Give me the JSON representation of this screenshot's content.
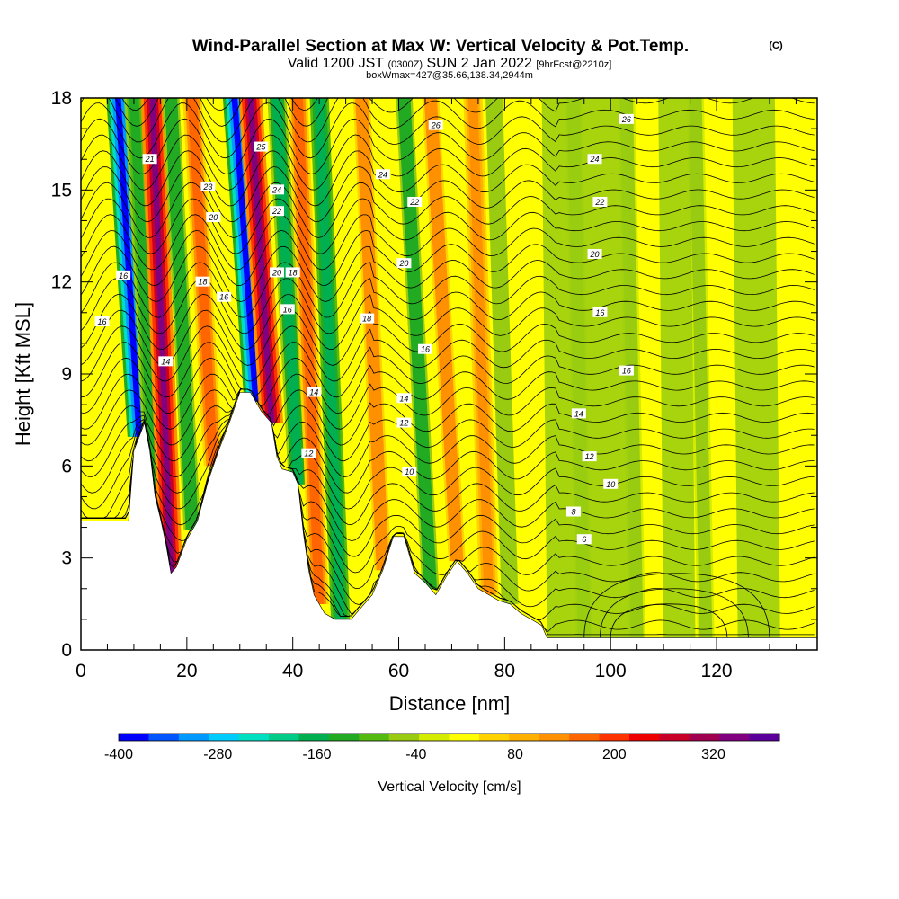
{
  "title": {
    "main": "Wind-Parallel Section at Max W: Vertical Velocity & Pot.Temp.",
    "copyright": "(C)",
    "line2_a": "Valid 1200 JST",
    "line2_b": "(0300Z)",
    "line2_c": "SUN 2 Jan 2022",
    "line2_d": "[9hrFcst@2210z]",
    "line3": "boxWmax=427@35.66,138.34,2944m"
  },
  "chart_data": {
    "type": "heatmap",
    "xlabel": "Distance [nm]",
    "ylabel": "Height [Kft MSL]",
    "xlim": [
      0,
      139
    ],
    "ylim": [
      0,
      18
    ],
    "x_ticks": [
      "0",
      "20",
      "40",
      "60",
      "80",
      "100",
      "120"
    ],
    "y_ticks": [
      "0",
      "3",
      "6",
      "9",
      "12",
      "15",
      "18"
    ],
    "colorbar": {
      "label": "Vertical Velocity [cm/s]",
      "ticks": [
        "-400",
        "-280",
        "-160",
        "-40",
        "80",
        "200",
        "320"
      ],
      "range": [
        -400,
        400
      ],
      "colors": [
        "#0000ff",
        "#0055ff",
        "#0099ff",
        "#00ccff",
        "#00e0c0",
        "#00cc88",
        "#00b050",
        "#22aa22",
        "#55bb11",
        "#99cc11",
        "#d4ec00",
        "#ffff00",
        "#ffd200",
        "#ffb000",
        "#ff9000",
        "#ff6600",
        "#ff3300",
        "#ee0000",
        "#c80028",
        "#a00050",
        "#800080",
        "#5c009c"
      ]
    },
    "terrain_kft": [
      [
        0,
        4.2
      ],
      [
        5,
        4.2
      ],
      [
        9,
        4.2
      ],
      [
        10,
        6.5
      ],
      [
        12,
        7.4
      ],
      [
        13,
        6.5
      ],
      [
        14,
        5.0
      ],
      [
        15,
        4.3
      ],
      [
        16,
        3.5
      ],
      [
        17,
        2.5
      ],
      [
        18,
        2.7
      ],
      [
        20,
        3.6
      ],
      [
        22,
        4.2
      ],
      [
        24,
        5.5
      ],
      [
        26,
        6.5
      ],
      [
        28,
        7.4
      ],
      [
        30,
        8.4
      ],
      [
        32,
        8.4
      ],
      [
        34,
        7.8
      ],
      [
        36,
        7.4
      ],
      [
        37,
        6.3
      ],
      [
        38,
        5.9
      ],
      [
        40,
        5.8
      ],
      [
        41,
        5.4
      ],
      [
        42,
        3.8
      ],
      [
        43,
        2.6
      ],
      [
        44,
        1.8
      ],
      [
        45,
        1.5
      ],
      [
        46,
        1.2
      ],
      [
        48,
        1.0
      ],
      [
        51,
        1.0
      ],
      [
        53,
        1.4
      ],
      [
        55,
        1.8
      ],
      [
        57,
        2.6
      ],
      [
        59,
        3.7
      ],
      [
        61,
        3.7
      ],
      [
        63,
        2.5
      ],
      [
        65,
        2.2
      ],
      [
        67,
        1.8
      ],
      [
        69,
        2.4
      ],
      [
        71,
        2.9
      ],
      [
        73,
        2.5
      ],
      [
        75,
        2.0
      ],
      [
        77,
        1.8
      ],
      [
        79,
        1.6
      ],
      [
        81,
        1.5
      ],
      [
        83,
        1.2
      ],
      [
        85,
        1.0
      ],
      [
        87,
        0.8
      ],
      [
        88,
        0.4
      ],
      [
        139,
        0.4
      ]
    ],
    "wave_columns": [
      {
        "x": 11,
        "w": -380,
        "x_top": 7
      },
      {
        "x": 14,
        "w": -130,
        "x_top": 10
      },
      {
        "x": 17,
        "w": 330,
        "x_top": 13.5
      },
      {
        "x": 21,
        "w": -120,
        "x_top": 17
      },
      {
        "x": 25,
        "w": 150,
        "x_top": 21
      },
      {
        "x": 33,
        "w": -400,
        "x_top": 29
      },
      {
        "x": 36,
        "w": 360,
        "x_top": 32
      },
      {
        "x": 41,
        "w": -160,
        "x_top": 37
      },
      {
        "x": 45,
        "w": 150,
        "x_top": 41
      },
      {
        "x": 49,
        "w": -180,
        "x_top": 45
      },
      {
        "x": 57,
        "w": 120,
        "x_top": 53
      },
      {
        "x": 66,
        "w": -120,
        "x_top": 61
      },
      {
        "x": 71,
        "w": 110,
        "x_top": 66
      },
      {
        "x": 77,
        "w": 140,
        "x_top": 74
      },
      {
        "x": 81,
        "w": -70,
        "x_top": 78
      },
      {
        "x": 95,
        "w": -60,
        "x_top": 93
      },
      {
        "x": 105,
        "w": -50,
        "x_top": 103
      },
      {
        "x": 118,
        "w": -60,
        "x_top": 116
      }
    ],
    "contour_labels": [
      {
        "text": "14",
        "x": 16,
        "y": 9.4
      },
      {
        "text": "14",
        "x": 44,
        "y": 8.4
      },
      {
        "text": "14",
        "x": 61,
        "y": 8.2
      },
      {
        "text": "14",
        "x": 94,
        "y": 7.7
      },
      {
        "text": "16",
        "x": 4,
        "y": 10.7
      },
      {
        "text": "16",
        "x": 8,
        "y": 12.2
      },
      {
        "text": "16",
        "x": 27,
        "y": 11.5
      },
      {
        "text": "16",
        "x": 39,
        "y": 11.1
      },
      {
        "text": "16",
        "x": 65,
        "y": 9.8
      },
      {
        "text": "16",
        "x": 103,
        "y": 9.1
      },
      {
        "text": "16",
        "x": 98,
        "y": 11.0
      },
      {
        "text": "18",
        "x": 23,
        "y": 12.0
      },
      {
        "text": "18",
        "x": 40,
        "y": 12.3
      },
      {
        "text": "18",
        "x": 54,
        "y": 10.8
      },
      {
        "text": "20",
        "x": 25,
        "y": 14.1
      },
      {
        "text": "20",
        "x": 37,
        "y": 12.3
      },
      {
        "text": "20",
        "x": 61,
        "y": 12.6
      },
      {
        "text": "20",
        "x": 97,
        "y": 12.9
      },
      {
        "text": "21",
        "x": 13,
        "y": 16.0
      },
      {
        "text": "22",
        "x": 37,
        "y": 14.3
      },
      {
        "text": "22",
        "x": 63,
        "y": 14.6
      },
      {
        "text": "22",
        "x": 98,
        "y": 14.6
      },
      {
        "text": "23",
        "x": 24,
        "y": 15.1
      },
      {
        "text": "24",
        "x": 37,
        "y": 15.0
      },
      {
        "text": "24",
        "x": 57,
        "y": 15.5
      },
      {
        "text": "24",
        "x": 97,
        "y": 16.0
      },
      {
        "text": "25",
        "x": 34,
        "y": 16.4
      },
      {
        "text": "26",
        "x": 67,
        "y": 17.1
      },
      {
        "text": "26",
        "x": 103,
        "y": 17.3
      },
      {
        "text": "12",
        "x": 61,
        "y": 7.4
      },
      {
        "text": "12",
        "x": 43,
        "y": 6.4
      },
      {
        "text": "12",
        "x": 96,
        "y": 6.3
      },
      {
        "text": "10",
        "x": 62,
        "y": 5.8
      },
      {
        "text": "10",
        "x": 100,
        "y": 5.4
      },
      {
        "text": "8",
        "x": 93,
        "y": 4.5
      },
      {
        "text": "6",
        "x": 95,
        "y": 3.6
      }
    ]
  }
}
